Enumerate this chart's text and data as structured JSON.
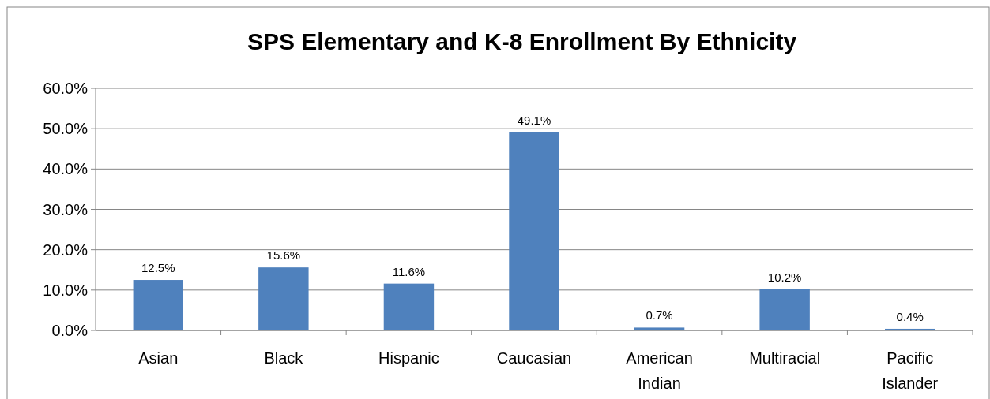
{
  "chart_data": {
    "type": "bar",
    "title": "SPS Elementary and K-8 Enrollment By Ethnicity",
    "categories": [
      "Asian",
      "Black",
      "Hispanic",
      "Caucasian",
      "American Indian",
      "Multiracial",
      "Pacific Islander"
    ],
    "values": [
      12.5,
      15.6,
      11.6,
      49.1,
      0.7,
      10.2,
      0.4
    ],
    "value_labels": [
      "12.5%",
      "15.6%",
      "11.6%",
      "49.1%",
      "0.7%",
      "10.2%",
      "0.4%"
    ],
    "color": "#4f81bd",
    "ylim": [
      0,
      60
    ],
    "yticks": [
      {
        "value": 0,
        "label": "0.0%"
      },
      {
        "value": 10,
        "label": "10.0%"
      },
      {
        "value": 20,
        "label": "20.0%"
      },
      {
        "value": 30,
        "label": "30.0%"
      },
      {
        "value": 40,
        "label": "40.0%"
      },
      {
        "value": 50,
        "label": "50.0%"
      },
      {
        "value": 60,
        "label": "60.0%"
      }
    ],
    "grid": "y"
  }
}
